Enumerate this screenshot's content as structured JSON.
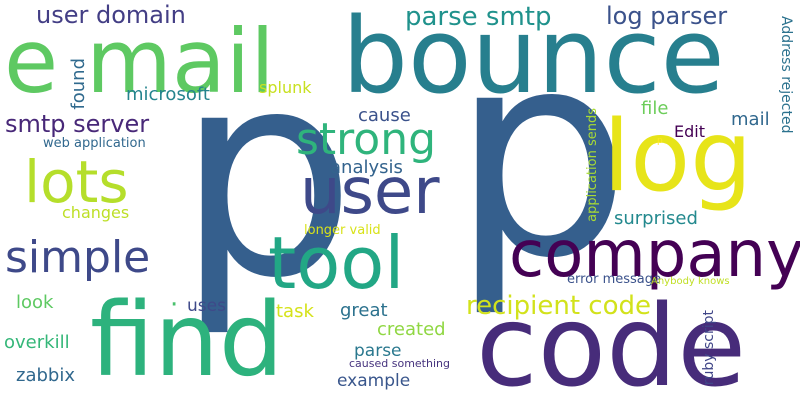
{
  "words": [
    {
      "text": "p",
      "color": "#355f8d"
    },
    {
      "text": "p",
      "color": "#355f8d"
    },
    {
      "text": "bounce",
      "color": "#277f8e"
    },
    {
      "text": "code",
      "color": "#472c7a"
    },
    {
      "text": "find",
      "color": "#2db27d"
    },
    {
      "text": "e mail",
      "color": "#5ec962"
    },
    {
      "text": "log",
      "color": "#e7e419"
    },
    {
      "text": "company",
      "color": "#440154"
    },
    {
      "text": "tool",
      "color": "#22a785"
    },
    {
      "text": "user",
      "color": "#3e4989"
    },
    {
      "text": "lots",
      "color": "#b5de2b"
    },
    {
      "text": "strong",
      "color": "#2fb47c"
    },
    {
      "text": "simple",
      "color": "#3e4989"
    },
    {
      "text": "recipient code",
      "color": "#d2e21b"
    },
    {
      "text": "parse smtp",
      "color": "#20928c"
    },
    {
      "text": "log parser",
      "color": "#3b528b"
    },
    {
      "text": "user domain",
      "color": "#433e85"
    },
    {
      "text": "smtp server",
      "color": "#482878"
    },
    {
      "text": "microsoft",
      "color": "#25848e"
    },
    {
      "text": "splunk",
      "color": "#c8e020"
    },
    {
      "text": "cause",
      "color": "#3b528b"
    },
    {
      "text": "mail",
      "color": "#31688e"
    },
    {
      "text": "file",
      "color": "#6ccd5a"
    },
    {
      "text": "Edit",
      "color": "#440154"
    },
    {
      "text": "analysis",
      "color": "#33638d"
    },
    {
      "text": "surprised",
      "color": "#23898e"
    },
    {
      "text": "changes",
      "color": "#bddf26"
    },
    {
      "text": "longer valid",
      "color": "#d8e219"
    },
    {
      "text": "web application",
      "color": "#31688e"
    },
    {
      "text": "error message",
      "color": "#3b528b"
    },
    {
      "text": "Anybody knows",
      "color": "#c0df25"
    },
    {
      "text": "look",
      "color": "#5ec962"
    },
    {
      "text": "uses",
      "color": "#3e4989"
    },
    {
      "text": "task",
      "color": "#d5e21a"
    },
    {
      "text": "great",
      "color": "#2c728e"
    },
    {
      "text": "created",
      "color": "#90d743"
    },
    {
      "text": "overkill",
      "color": "#35b779"
    },
    {
      "text": "parse",
      "color": "#2a788e"
    },
    {
      "text": "zabbix",
      "color": "#31688e"
    },
    {
      "text": "example",
      "color": "#39568c"
    },
    {
      "text": "caused something",
      "color": "#46337e"
    },
    {
      "text": "ruby script",
      "color": "#404688"
    },
    {
      "text": "found",
      "color": "#306a8e"
    },
    {
      "text": "application sends",
      "color": "#a8db34"
    },
    {
      "text": "Address rejected",
      "color": "#2c728e"
    },
    {
      "text": "p",
      "color": "#fde725"
    },
    {
      "text": "·",
      "color": "#4ac16d"
    }
  ]
}
